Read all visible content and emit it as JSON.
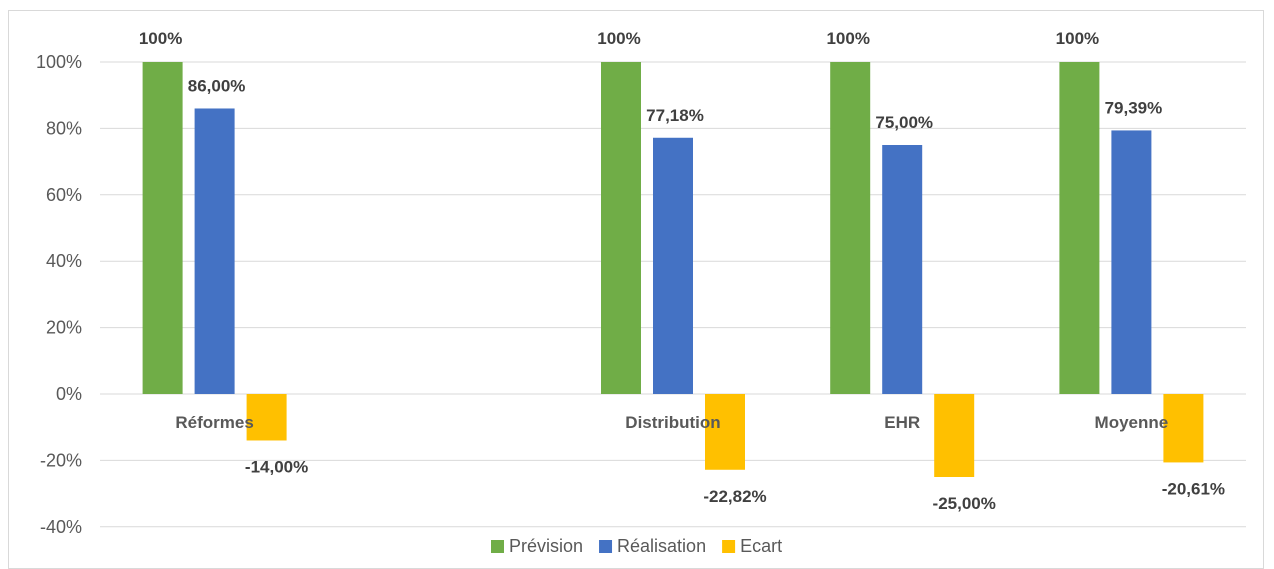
{
  "chart_data": {
    "type": "bar",
    "categories": [
      "Réformes",
      "",
      "Distribution",
      "EHR",
      "Moyenne"
    ],
    "yticks": [
      "100%",
      "80%",
      "60%",
      "40%",
      "20%",
      "0%",
      "-20%",
      "-40%"
    ],
    "ylim": [
      -40,
      100
    ],
    "grid": true,
    "legend_position": "bottom",
    "series": [
      {
        "name": "Prévision",
        "color": "#70ad47",
        "values": [
          100,
          null,
          100,
          100,
          100
        ],
        "labels": [
          "100%",
          "",
          "100%",
          "100%",
          "100%"
        ]
      },
      {
        "name": "Réalisation",
        "color": "#4472c4",
        "values": [
          86.0,
          null,
          77.18,
          75.0,
          79.39
        ],
        "labels": [
          "86,00%",
          "",
          "77,18%",
          "75,00%",
          "79,39%"
        ]
      },
      {
        "name": "Ecart",
        "color": "#ffc000",
        "values": [
          -14.0,
          null,
          -22.82,
          -25.0,
          -20.61
        ],
        "labels": [
          "-14,00%",
          "",
          "-22,82%",
          "-25,00%",
          "-20,61%"
        ]
      }
    ]
  }
}
